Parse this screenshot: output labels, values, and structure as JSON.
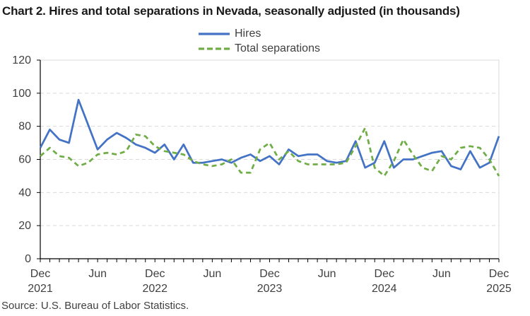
{
  "title": "Chart 2. Hires and total separations in Nevada, seasonally adjusted (in thousands)",
  "source": "Source: U.S. Bureau of Labor Statistics.",
  "legend": {
    "items": [
      {
        "label": "Hires",
        "color": "#4472C4",
        "style": "solid"
      },
      {
        "label": "Total separations",
        "color": "#70AD47",
        "style": "dashed"
      }
    ]
  },
  "colors": {
    "hires_line": "#4472C4",
    "separations_line": "#70AD47",
    "gridline": "#D9D9D9",
    "axis": "#000000",
    "tick_label": "#404040"
  },
  "chart_data": {
    "type": "line",
    "title": "Chart 2. Hires and total separations in Nevada, seasonally adjusted (in thousands)",
    "xlabel": "",
    "ylabel": "",
    "ylim": [
      0,
      120
    ],
    "y_ticks": [
      0,
      20,
      40,
      60,
      80,
      100,
      120
    ],
    "grid": "horizontal-dashed",
    "legend_position": "top-center",
    "x_tick_labels": [
      {
        "i": 0,
        "month": "Dec",
        "year": "2021"
      },
      {
        "i": 6,
        "month": "Jun"
      },
      {
        "i": 12,
        "month": "Dec",
        "year": "2022"
      },
      {
        "i": 18,
        "month": "Jun"
      },
      {
        "i": 24,
        "month": "Dec",
        "year": "2023"
      },
      {
        "i": 30,
        "month": "Jun"
      },
      {
        "i": 36,
        "month": "Dec",
        "year": "2024"
      },
      {
        "i": 42,
        "month": "Jun"
      },
      {
        "i": 48,
        "month": "Dec",
        "year": "2025"
      }
    ],
    "months": [
      "Dec 2021",
      "Jan 2022",
      "Feb 2022",
      "Mar 2022",
      "Apr 2022",
      "May 2022",
      "Jun 2022",
      "Jul 2022",
      "Aug 2022",
      "Sep 2022",
      "Oct 2022",
      "Nov 2022",
      "Dec 2022",
      "Jan 2023",
      "Feb 2023",
      "Mar 2023",
      "Apr 2023",
      "May 2023",
      "Jun 2023",
      "Jul 2023",
      "Aug 2023",
      "Sep 2023",
      "Oct 2023",
      "Nov 2023",
      "Dec 2023",
      "Jan 2024",
      "Feb 2024",
      "Mar 2024",
      "Apr 2024",
      "May 2024",
      "Jun 2024",
      "Jul 2024",
      "Aug 2024",
      "Sep 2024",
      "Oct 2024",
      "Nov 2024",
      "Dec 2024",
      "Jan 2025",
      "Feb 2025",
      "Mar 2025",
      "Apr 2025",
      "May 2025",
      "Jun 2025",
      "Jul 2025",
      "Aug 2025",
      "Sep 2025",
      "Oct 2025",
      "Nov 2025",
      "Dec 2025"
    ],
    "series": [
      {
        "name": "Hires",
        "color": "#4472C4",
        "line_style": "solid",
        "values": [
          67,
          78,
          72,
          70,
          96,
          81,
          66,
          72,
          76,
          73,
          69,
          67,
          64,
          69,
          60,
          69,
          58,
          58,
          59,
          60,
          58,
          61,
          63,
          59,
          62,
          57,
          66,
          62,
          63,
          63,
          59,
          58,
          59,
          71,
          55,
          58,
          71,
          55,
          60,
          60,
          62,
          64,
          65,
          56,
          54,
          65,
          55,
          58,
          74
        ]
      },
      {
        "name": "Total separations",
        "color": "#70AD47",
        "line_style": "dashed",
        "values": [
          62,
          67,
          62,
          61,
          56,
          58,
          63,
          64,
          63,
          65,
          75,
          74,
          68,
          65,
          64,
          63,
          59,
          57,
          56,
          57,
          60,
          52,
          52,
          66,
          70,
          60,
          65,
          59,
          57,
          57,
          57,
          57,
          58,
          68,
          79,
          55,
          50,
          59,
          72,
          63,
          55,
          53,
          62,
          60,
          67,
          68,
          67,
          60,
          50
        ]
      }
    ]
  }
}
